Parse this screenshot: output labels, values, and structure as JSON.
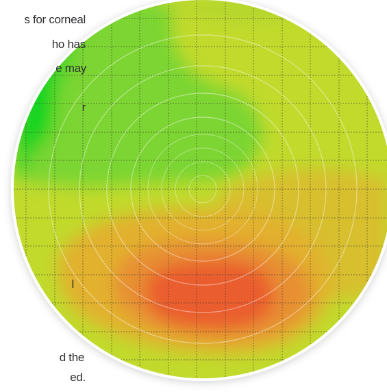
{
  "text_fragments": [
    "s for corneal",
    "ho has",
    "e may",
    "r",
    "l",
    "d the",
    "ed."
  ],
  "map": {
    "colors": {
      "deep_green": "#19d420",
      "green": "#5ed42b",
      "light_green": "#8fd431",
      "yellow_green": "#c1da2c",
      "yellow": "#d6cb2a",
      "orange_yellow": "#e1b52d",
      "orange": "#e69a33",
      "red_orange": "#ea5d2f",
      "border": "#ffffff"
    }
  }
}
